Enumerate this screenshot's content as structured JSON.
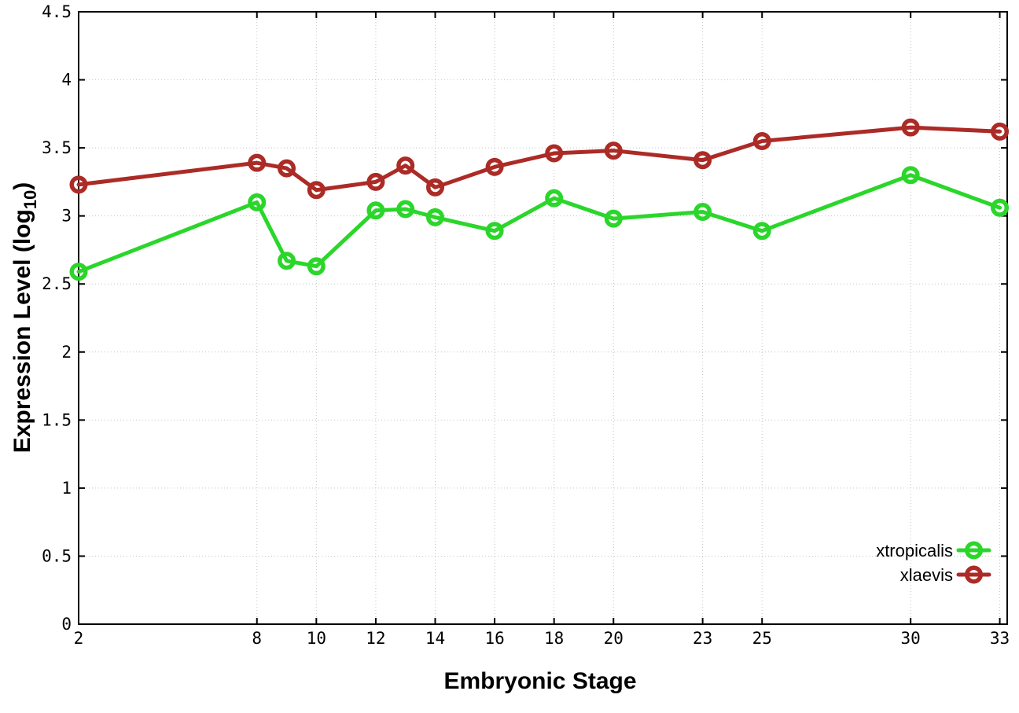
{
  "chart_data": {
    "type": "line",
    "title": "",
    "xlabel": "Embryonic Stage",
    "ylabel_prefix": "Expression Level (log",
    "ylabel_sub": "10",
    "ylabel_suffix": ")",
    "grid": true,
    "grid_style": "dotted",
    "grid_color": "#c4c4c4",
    "axis_color": "#000000",
    "background_color": "#ffffff",
    "legend_position": "bottom-right",
    "marker": "open-circle",
    "xlim": [
      2,
      33.25
    ],
    "ylim": [
      0,
      4.5
    ],
    "x_ticks": [
      2,
      8,
      10,
      12,
      14,
      16,
      18,
      20,
      23,
      25,
      30,
      33
    ],
    "x_tick_labels": [
      "2",
      "8",
      "10",
      "12",
      "14",
      "16",
      "18",
      "20",
      "23",
      "25",
      "30",
      "33"
    ],
    "y_ticks": [
      0,
      0.5,
      1,
      1.5,
      2,
      2.5,
      3,
      3.5,
      4,
      4.5
    ],
    "y_tick_labels": [
      "0",
      "0.5",
      "1",
      "1.5",
      "2",
      "2.5",
      "3",
      "3.5",
      "4",
      "4.5"
    ],
    "x": [
      2,
      8,
      9,
      10,
      12,
      13,
      14,
      16,
      18,
      20,
      23,
      25,
      30,
      33
    ],
    "series": [
      {
        "name": "xtropicalis",
        "color": "#2bd62b",
        "values": [
          2.59,
          3.1,
          2.67,
          2.63,
          3.04,
          3.05,
          2.99,
          2.89,
          3.13,
          2.98,
          3.03,
          2.89,
          3.3,
          3.06
        ]
      },
      {
        "name": "xlaevis",
        "color": "#ac2b26",
        "values": [
          3.23,
          3.39,
          3.35,
          3.19,
          3.25,
          3.37,
          3.21,
          3.36,
          3.46,
          3.48,
          3.41,
          3.55,
          3.65,
          3.62
        ]
      }
    ]
  }
}
